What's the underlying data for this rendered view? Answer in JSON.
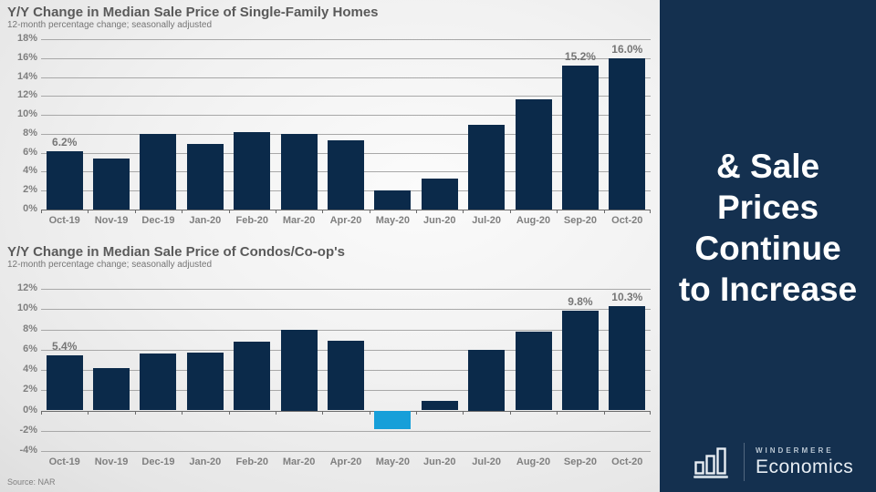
{
  "slide": {
    "source_note": "Source: NAR"
  },
  "panel": {
    "headline": "& Sale Prices Continue to Increase",
    "headline_lines": [
      "& Sale",
      "Prices",
      "Continue",
      "to Increase"
    ],
    "background_color": "#14304f",
    "logo": {
      "brand": "WINDERMERE",
      "division": "Economics",
      "icon": "bar-chart-icon"
    }
  },
  "colors": {
    "bar_navy": "#0b2a4a",
    "bar_negative_blue": "#169fd9",
    "panel_navy": "#14304f",
    "grid_gray": "#a8a8a8",
    "text_gray": "#7f7f7f"
  },
  "chart_data": [
    {
      "type": "bar",
      "title": "Y/Y Change in Median Sale Price of Single-Family Homes",
      "subtitle": "12-month percentage change; seasonally adjusted",
      "categories": [
        "Oct-19",
        "Nov-19",
        "Dec-19",
        "Jan-20",
        "Feb-20",
        "Mar-20",
        "Apr-20",
        "May-20",
        "Jun-20",
        "Jul-20",
        "Aug-20",
        "Sep-20",
        "Oct-20"
      ],
      "values": [
        6.2,
        5.4,
        8.0,
        6.9,
        8.2,
        8.0,
        7.3,
        2.0,
        3.3,
        9.0,
        11.6,
        15.2,
        16.0
      ],
      "data_labels": {
        "0": "6.2%",
        "11": "15.2%",
        "12": "16.0%"
      },
      "ylim": [
        0,
        18
      ],
      "ytick_step": 2,
      "ytick_suffix": "%",
      "grid": true,
      "legend": "none",
      "bar_color": "#0b2a4a",
      "negative_color": "#169fd9"
    },
    {
      "type": "bar",
      "title": "Y/Y Change in Median Sale Price of Condos/Co-op's",
      "subtitle": "12-month percentage change; seasonally adjusted",
      "categories": [
        "Oct-19",
        "Nov-19",
        "Dec-19",
        "Jan-20",
        "Feb-20",
        "Mar-20",
        "Apr-20",
        "May-20",
        "Jun-20",
        "Jul-20",
        "Aug-20",
        "Sep-20",
        "Oct-20"
      ],
      "values": [
        5.4,
        4.2,
        5.6,
        5.7,
        6.8,
        8.0,
        6.9,
        -1.8,
        0.9,
        6.0,
        7.8,
        9.8,
        10.3
      ],
      "data_labels": {
        "0": "5.4%",
        "11": "9.8%",
        "12": "10.3%"
      },
      "ylim": [
        -4,
        12
      ],
      "ytick_step": 2,
      "ytick_suffix": "%",
      "grid": true,
      "legend": "none",
      "bar_color": "#0b2a4a",
      "negative_color": "#169fd9"
    }
  ]
}
